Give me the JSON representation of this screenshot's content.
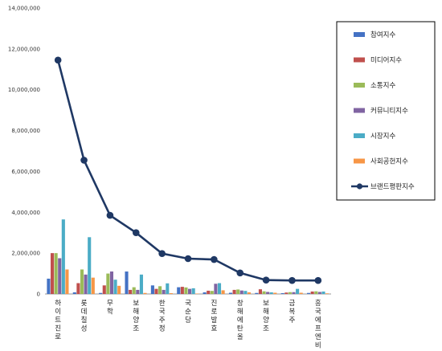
{
  "chart_data": {
    "type": "bar",
    "title": "",
    "xlabel": "",
    "ylabel": "",
    "ylim": [
      0,
      14000000
    ],
    "yticks": [
      0,
      2000000,
      4000000,
      6000000,
      8000000,
      10000000,
      12000000,
      14000000
    ],
    "ytick_labels": [
      "0",
      "2,000,000",
      "4,000,000",
      "6,000,000",
      "8,000,000",
      "10,000,000",
      "12,000,000",
      "14,000,000"
    ],
    "grid": false,
    "legend_position": "right",
    "categories": [
      "하이트진로",
      "롯데칠성",
      "무학",
      "보해양조",
      "한국주정",
      "국순당",
      "진로발효",
      "창해에탄올",
      "보해양조",
      "금복주",
      "흥국에프엔비"
    ],
    "series": [
      {
        "name": "참여지수",
        "color": "#4472c4",
        "kind": "bar",
        "values": [
          750000,
          80000,
          50000,
          1100000,
          420000,
          330000,
          80000,
          60000,
          50000,
          40000,
          50000
        ]
      },
      {
        "name": "미디어지수",
        "color": "#c0504d",
        "kind": "bar",
        "values": [
          2000000,
          530000,
          420000,
          200000,
          250000,
          350000,
          160000,
          200000,
          230000,
          70000,
          120000
        ]
      },
      {
        "name": "소통지수",
        "color": "#9bbb59",
        "kind": "bar",
        "values": [
          2000000,
          1200000,
          1000000,
          330000,
          380000,
          320000,
          150000,
          220000,
          130000,
          90000,
          130000
        ]
      },
      {
        "name": "커뮤니티지수",
        "color": "#8064a2",
        "kind": "bar",
        "values": [
          1750000,
          950000,
          1100000,
          200000,
          200000,
          250000,
          500000,
          170000,
          100000,
          90000,
          100000
        ]
      },
      {
        "name": "시장지수",
        "color": "#4bacc6",
        "kind": "bar",
        "values": [
          3650000,
          2780000,
          700000,
          950000,
          520000,
          280000,
          530000,
          150000,
          80000,
          250000,
          120000
        ]
      },
      {
        "name": "사회공헌지수",
        "color": "#f79646",
        "kind": "bar",
        "values": [
          1200000,
          800000,
          400000,
          50000,
          40000,
          20000,
          180000,
          80000,
          60000,
          60000,
          30000
        ]
      },
      {
        "name": "브랜드평판지수",
        "color": "#1f3864",
        "kind": "line",
        "values": [
          11450000,
          6550000,
          3850000,
          3000000,
          1980000,
          1730000,
          1690000,
          1030000,
          680000,
          660000,
          660000
        ]
      }
    ]
  }
}
